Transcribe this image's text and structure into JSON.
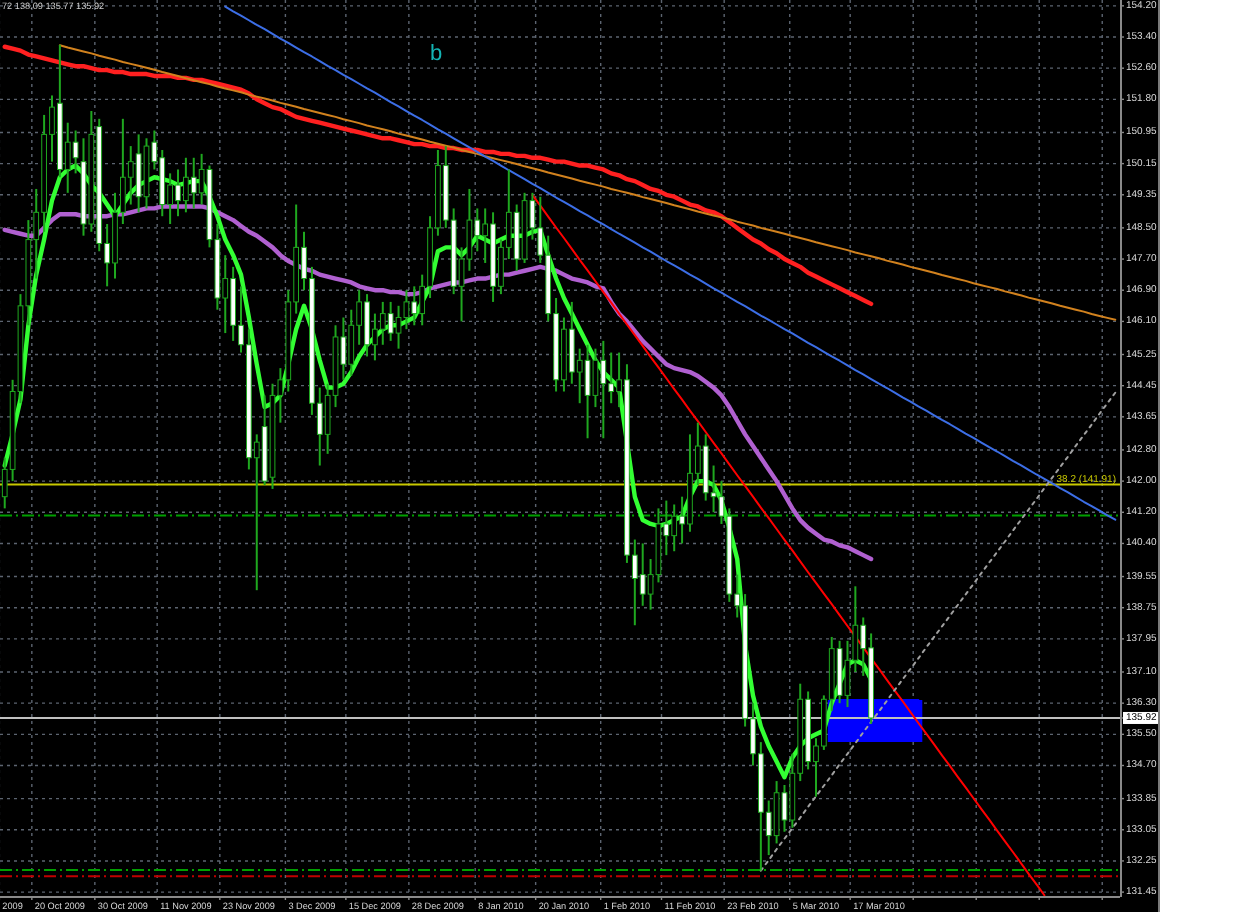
{
  "chart_data": {
    "type": "candlestick",
    "title": "72 138.09 135.77 135.92",
    "color": "#1fa81f",
    "ylim": [
      131.35,
      154.35
    ],
    "grid": true,
    "yticks": [
      {
        "value": 154.2,
        "label": "154.20"
      },
      {
        "value": 153.4,
        "label": "153.40"
      },
      {
        "value": 152.6,
        "label": "152.60"
      },
      {
        "value": 151.8,
        "label": "151.80"
      },
      {
        "value": 150.95,
        "label": "150.95"
      },
      {
        "value": 150.15,
        "label": "150.15"
      },
      {
        "value": 149.35,
        "label": "149.35"
      },
      {
        "value": 148.5,
        "label": "148.50"
      },
      {
        "value": 147.7,
        "label": "147.70"
      },
      {
        "value": 146.9,
        "label": "146.90"
      },
      {
        "value": 146.1,
        "label": "146.10"
      },
      {
        "value": 145.25,
        "label": "145.25"
      },
      {
        "value": 144.45,
        "label": "144.45"
      },
      {
        "value": 143.65,
        "label": "143.65"
      },
      {
        "value": 142.8,
        "label": "142.80"
      },
      {
        "value": 142,
        "label": "142.00"
      },
      {
        "value": 141.2,
        "label": "141.20"
      },
      {
        "value": 140.4,
        "label": "140.40"
      },
      {
        "value": 139.55,
        "label": "139.55"
      },
      {
        "value": 138.75,
        "label": "138.75"
      },
      {
        "value": 137.95,
        "label": "137.95"
      },
      {
        "value": 137.1,
        "label": "137.10"
      },
      {
        "value": 136.3,
        "label": "136.30"
      },
      {
        "value": 135.92,
        "label": "135.92"
      },
      {
        "value": 135.5,
        "label": "135.50"
      },
      {
        "value": 134.7,
        "label": "134.70"
      },
      {
        "value": 133.85,
        "label": "133.85"
      },
      {
        "value": 133.05,
        "label": "133.05"
      },
      {
        "value": 132.25,
        "label": "132.25"
      },
      {
        "value": 131.45,
        "label": "131.45"
      }
    ],
    "categories": [
      null,
      "2009",
      null,
      null,
      null,
      null,
      null,
      "20 Oct 2009",
      null,
      null,
      null,
      null,
      null,
      null,
      null,
      "30 Oct 2009",
      null,
      null,
      null,
      null,
      null,
      null,
      null,
      "11 Nov 2009",
      null,
      null,
      null,
      null,
      null,
      null,
      null,
      "23 Nov 2009",
      null,
      null,
      null,
      null,
      null,
      null,
      null,
      "3 Dec 2009",
      null,
      null,
      null,
      null,
      null,
      null,
      null,
      "15 Dec 2009",
      null,
      null,
      null,
      null,
      null,
      null,
      null,
      "28 Dec 2009",
      null,
      null,
      null,
      null,
      null,
      null,
      null,
      "8 Jan 2010",
      null,
      null,
      null,
      null,
      null,
      null,
      null,
      "20 Jan 2010",
      null,
      null,
      null,
      null,
      null,
      null,
      null,
      "1 Feb 2010",
      null,
      null,
      null,
      null,
      null,
      null,
      null,
      "11 Feb 2010",
      null,
      null,
      null,
      null,
      null,
      null,
      null,
      "23 Feb 2010",
      null,
      null,
      null,
      null,
      null,
      null,
      null,
      "5 Mar 2010",
      null,
      null,
      null,
      null,
      null,
      null,
      null,
      "17 Mar 2010",
      null,
      null,
      null,
      null,
      null,
      null,
      null,
      null,
      null,
      null,
      null,
      null,
      null,
      null,
      null,
      null,
      null,
      null,
      null,
      null,
      null,
      null,
      null,
      null,
      null,
      null,
      null,
      null,
      null,
      null
    ],
    "ohlc": [
      [
        141.6,
        142.6,
        141.3,
        142.3
      ],
      [
        142.3,
        144.6,
        142.0,
        144.3
      ],
      [
        144.3,
        146.8,
        144.0,
        146.5
      ],
      [
        146.5,
        148.7,
        146.0,
        148.2
      ],
      [
        148.2,
        149.5,
        147.2,
        148.9
      ],
      [
        148.9,
        151.4,
        148.4,
        150.9
      ],
      [
        150.9,
        151.9,
        150.2,
        151.6
      ],
      [
        151.7,
        153.2,
        149.8,
        150.0
      ],
      [
        150.0,
        151.2,
        149.4,
        150.7
      ],
      [
        150.7,
        151.0,
        149.9,
        150.3
      ],
      [
        150.2,
        150.8,
        148.3,
        148.6
      ],
      [
        148.6,
        151.5,
        148.4,
        150.9
      ],
      [
        151.1,
        151.3,
        147.9,
        148.1
      ],
      [
        148.1,
        148.6,
        147.0,
        147.6
      ],
      [
        147.6,
        149.4,
        147.2,
        148.9
      ],
      [
        148.9,
        151.3,
        148.6,
        149.8
      ],
      [
        149.8,
        150.6,
        149.1,
        150.2
      ],
      [
        150.4,
        150.9,
        148.9,
        149.3
      ],
      [
        149.3,
        150.8,
        149.0,
        150.6
      ],
      [
        150.7,
        151.0,
        150.0,
        150.2
      ],
      [
        150.3,
        150.5,
        148.8,
        149.1
      ],
      [
        149.1,
        149.9,
        148.6,
        149.6
      ],
      [
        149.6,
        150.0,
        148.8,
        149.2
      ],
      [
        149.2,
        150.3,
        148.9,
        149.8
      ],
      [
        149.8,
        150.3,
        149.0,
        149.4
      ],
      [
        149.4,
        150.4,
        149.1,
        150.0
      ],
      [
        150.0,
        150.1,
        148.0,
        148.2
      ],
      [
        148.2,
        148.6,
        146.4,
        146.7
      ],
      [
        146.7,
        147.8,
        145.8,
        147.2
      ],
      [
        147.2,
        147.5,
        145.6,
        146.0
      ],
      [
        146.0,
        147.0,
        145.3,
        145.5
      ],
      [
        145.5,
        145.9,
        142.3,
        142.6
      ],
      [
        142.6,
        143.2,
        139.2,
        143.0
      ],
      [
        143.4,
        144.2,
        141.9,
        142.0
      ],
      [
        142.1,
        144.5,
        141.8,
        144.2
      ],
      [
        144.2,
        144.9,
        143.5,
        144.6
      ],
      [
        144.6,
        146.9,
        144.3,
        146.6
      ],
      [
        146.6,
        149.1,
        146.3,
        148.0
      ],
      [
        148.0,
        148.4,
        146.9,
        147.2
      ],
      [
        147.2,
        147.5,
        143.7,
        144.0
      ],
      [
        144.0,
        144.4,
        142.4,
        143.2
      ],
      [
        143.2,
        144.5,
        142.7,
        144.2
      ],
      [
        144.2,
        146.0,
        143.9,
        145.7
      ],
      [
        145.7,
        146.2,
        144.6,
        145.0
      ],
      [
        145.0,
        146.4,
        144.7,
        146.0
      ],
      [
        146.0,
        146.9,
        145.5,
        146.6
      ],
      [
        146.6,
        146.8,
        145.2,
        145.5
      ],
      [
        145.5,
        146.3,
        145.1,
        145.9
      ],
      [
        145.9,
        146.6,
        145.5,
        146.3
      ],
      [
        146.3,
        146.6,
        145.6,
        145.8
      ],
      [
        145.8,
        146.5,
        145.4,
        146.2
      ],
      [
        146.2,
        146.9,
        145.9,
        146.6
      ],
      [
        146.6,
        147.0,
        146.0,
        146.3
      ],
      [
        146.3,
        147.3,
        146.0,
        147.0
      ],
      [
        147.0,
        148.8,
        146.7,
        148.5
      ],
      [
        148.5,
        150.5,
        148.3,
        150.1
      ],
      [
        150.1,
        150.6,
        148.5,
        148.7
      ],
      [
        148.7,
        149.0,
        146.8,
        147.0
      ],
      [
        147.0,
        148.0,
        146.1,
        147.7
      ],
      [
        147.7,
        149.5,
        147.4,
        148.7
      ],
      [
        148.7,
        149.0,
        147.9,
        148.3
      ],
      [
        148.3,
        149.0,
        147.6,
        148.6
      ],
      [
        148.6,
        148.9,
        146.6,
        147.0
      ],
      [
        147.0,
        148.2,
        146.8,
        148.0
      ],
      [
        148.0,
        150.0,
        147.7,
        148.9
      ],
      [
        148.9,
        149.1,
        147.4,
        147.7
      ],
      [
        147.7,
        149.4,
        147.6,
        149.2
      ],
      [
        149.2,
        149.4,
        148.2,
        148.5
      ],
      [
        148.5,
        149.3,
        147.6,
        147.8
      ],
      [
        147.8,
        148.3,
        146.1,
        146.3
      ],
      [
        146.3,
        146.7,
        144.3,
        144.6
      ],
      [
        144.6,
        146.2,
        144.3,
        145.9
      ],
      [
        145.9,
        146.6,
        144.5,
        144.8
      ],
      [
        144.8,
        145.4,
        144.0,
        145.1
      ],
      [
        145.1,
        145.5,
        143.1,
        144.2
      ],
      [
        144.2,
        145.4,
        143.9,
        145.1
      ],
      [
        145.1,
        145.6,
        143.1,
        144.5
      ],
      [
        144.5,
        145.3,
        144.0,
        144.3
      ],
      [
        144.3,
        145.3,
        143.9,
        144.6
      ],
      [
        144.6,
        145.0,
        139.9,
        140.1
      ],
      [
        140.1,
        140.5,
        138.3,
        139.5
      ],
      [
        139.6,
        140.4,
        138.8,
        139.1
      ],
      [
        139.1,
        140.0,
        138.7,
        139.6
      ],
      [
        139.6,
        141.3,
        139.4,
        140.9
      ],
      [
        140.9,
        141.5,
        140.1,
        140.6
      ],
      [
        140.6,
        141.4,
        140.2,
        141.1
      ],
      [
        141.1,
        141.6,
        140.4,
        140.9
      ],
      [
        140.9,
        143.2,
        140.7,
        142.2
      ],
      [
        142.2,
        143.5,
        141.9,
        142.9
      ],
      [
        142.9,
        143.2,
        141.5,
        141.7
      ],
      [
        141.7,
        142.4,
        141.2,
        141.6
      ],
      [
        141.6,
        142.0,
        140.9,
        141.1
      ],
      [
        141.1,
        141.3,
        138.9,
        139.1
      ],
      [
        139.1,
        139.6,
        138.5,
        138.8
      ],
      [
        138.8,
        139.1,
        135.7,
        135.9
      ],
      [
        135.9,
        136.3,
        134.7,
        135.0
      ],
      [
        135.0,
        135.3,
        132.0,
        133.5
      ],
      [
        133.5,
        133.8,
        132.4,
        132.9
      ],
      [
        132.9,
        134.3,
        132.7,
        134.0
      ],
      [
        134.0,
        134.2,
        133.0,
        133.3
      ],
      [
        133.3,
        135.0,
        133.1,
        134.5
      ],
      [
        134.5,
        136.8,
        134.3,
        136.4
      ],
      [
        136.4,
        136.6,
        134.6,
        134.8
      ],
      [
        134.8,
        135.4,
        133.9,
        135.2
      ],
      [
        135.2,
        136.5,
        135.1,
        136.4
      ],
      [
        136.4,
        138.0,
        136.1,
        137.7
      ],
      [
        137.7,
        137.9,
        136.3,
        136.5
      ],
      [
        136.5,
        137.9,
        136.2,
        137.4
      ],
      [
        137.4,
        139.3,
        137.1,
        138.3
      ],
      [
        138.3,
        138.5,
        137.0,
        137.7
      ],
      [
        137.72,
        138.09,
        135.77,
        135.92
      ],
      null,
      null,
      null,
      null,
      null,
      null,
      null,
      null,
      null,
      null,
      null,
      null,
      null,
      null,
      null,
      null,
      null,
      null,
      null,
      null,
      null,
      null,
      null,
      null,
      null,
      null,
      null,
      null,
      null,
      null,
      null
    ],
    "series": [
      {
        "type": "line",
        "color": "#0000ff",
        "values": [
          null,
          null,
          null,
          null,
          null,
          null,
          null,
          null,
          null,
          null,
          null,
          null,
          null,
          null,
          null,
          null,
          null,
          null,
          null,
          null,
          null,
          null,
          null,
          null,
          null,
          null,
          null,
          null,
          null,
          null,
          null,
          null,
          null,
          null,
          null,
          null,
          null,
          null,
          null,
          null,
          null,
          null,
          null,
          null,
          null,
          null,
          null,
          null,
          null,
          null,
          null,
          null,
          null,
          null,
          null,
          null,
          null,
          null,
          null,
          null,
          null,
          null,
          null,
          null,
          null,
          null,
          null,
          null,
          null,
          null,
          null,
          null,
          null,
          null,
          null,
          null,
          null,
          null,
          null,
          null,
          null,
          null,
          null,
          null,
          null,
          null,
          null,
          null,
          null,
          null,
          null,
          null,
          null,
          null,
          null,
          null,
          null,
          null,
          null,
          null,
          null,
          null,
          null,
          null,
          null,
          136.38,
          136.38,
          136.38,
          136.38,
          136.38,
          136.38,
          136.38,
          136.38,
          136.38,
          136.38,
          136.38,
          136.38,
          null,
          null,
          null,
          null,
          null,
          null,
          null,
          null,
          null,
          null,
          null,
          null,
          null,
          null,
          null,
          null,
          null,
          null,
          null,
          null,
          null,
          null,
          null,
          null,
          null
        ],
        "upper": [
          null,
          null,
          null,
          null,
          null,
          null,
          null,
          null,
          null,
          null,
          null,
          null,
          null,
          null,
          null,
          null,
          null,
          null,
          null,
          null,
          null,
          null,
          null,
          null,
          null,
          null,
          null,
          null,
          null,
          null,
          null,
          null,
          null,
          null,
          null,
          null,
          null,
          null,
          null,
          null,
          null,
          null,
          null,
          null,
          null,
          null,
          null,
          null,
          null,
          null,
          null,
          null,
          null,
          null,
          null,
          null,
          null,
          null,
          null,
          null,
          null,
          null,
          null,
          null,
          null,
          null,
          null,
          null,
          null,
          null,
          null,
          null,
          null,
          null,
          null,
          null,
          null,
          null,
          null,
          null,
          null,
          null,
          null,
          null,
          null,
          null,
          null,
          null,
          null,
          null,
          null,
          null,
          null,
          null,
          null,
          null,
          null,
          null,
          null,
          null,
          null,
          null,
          null,
          null,
          null,
          136.38,
          136.38,
          136.38,
          136.38,
          136.38,
          136.38,
          136.38,
          136.38,
          136.38,
          136.38,
          136.38,
          136.38,
          null,
          null,
          null,
          null,
          null,
          null,
          null,
          null,
          null,
          null,
          null,
          null,
          null,
          null,
          null,
          null,
          null,
          null,
          null,
          null,
          null,
          null,
          null,
          null,
          null
        ],
        "lower": [
          null,
          null,
          null,
          null,
          null,
          null,
          null,
          null,
          null,
          null,
          null,
          null,
          null,
          null,
          null,
          null,
          null,
          null,
          null,
          null,
          null,
          null,
          null,
          null,
          null,
          null,
          null,
          null,
          null,
          null,
          null,
          null,
          null,
          null,
          null,
          null,
          null,
          null,
          null,
          null,
          null,
          null,
          null,
          null,
          null,
          null,
          null,
          null,
          null,
          null,
          null,
          null,
          null,
          null,
          null,
          null,
          null,
          null,
          null,
          null,
          null,
          null,
          null,
          null,
          null,
          null,
          null,
          null,
          null,
          null,
          null,
          null,
          null,
          null,
          null,
          null,
          null,
          null,
          null,
          null,
          null,
          null,
          null,
          null,
          null,
          null,
          null,
          null,
          null,
          null,
          null,
          null,
          null,
          null,
          null,
          null,
          null,
          null,
          null,
          null,
          null,
          null,
          null,
          null,
          null,
          135.3,
          135.3,
          135.3,
          135.3,
          135.3,
          135.3,
          135.3,
          135.3,
          135.3,
          135.3,
          135.3,
          135.3,
          null,
          null,
          null,
          null,
          null,
          null,
          null,
          null,
          null,
          null,
          null,
          null,
          null,
          null,
          null,
          null,
          null,
          null,
          null,
          null,
          null,
          null,
          null,
          null,
          null
        ]
      },
      {
        "type": "line",
        "color": "#b060d0",
        "values": [
          148.45,
          148.4,
          148.35,
          148.3,
          148.3,
          148.5,
          148.7,
          148.85,
          148.85,
          148.85,
          148.8,
          148.8,
          148.8,
          148.8,
          148.85,
          148.85,
          148.9,
          148.95,
          149.0,
          149.0,
          149.05,
          149.05,
          149.05,
          149.05,
          149.05,
          149.05,
          149.0,
          148.9,
          148.8,
          148.7,
          148.55,
          148.4,
          148.3,
          148.15,
          148.0,
          147.8,
          147.65,
          147.55,
          147.45,
          147.4,
          147.3,
          147.25,
          147.2,
          147.15,
          147.1,
          147.0,
          146.95,
          146.9,
          146.9,
          146.85,
          146.85,
          146.8,
          146.8,
          146.85,
          146.95,
          147.0,
          147.05,
          147.1,
          147.1,
          147.15,
          147.2,
          147.2,
          147.25,
          147.3,
          147.3,
          147.35,
          147.4,
          147.45,
          147.5,
          147.45,
          147.4,
          147.3,
          147.2,
          147.15,
          147.1,
          147.0,
          146.95,
          146.6,
          146.3,
          146.1,
          145.85,
          145.6,
          145.4,
          145.2,
          145.0,
          144.9,
          144.85,
          144.8,
          144.7,
          144.55,
          144.4,
          144.2,
          143.9,
          143.55,
          143.2,
          142.9,
          142.6,
          142.3,
          142.0,
          141.65,
          141.3,
          141.0,
          140.8,
          140.65,
          140.5,
          140.45,
          140.35,
          140.3,
          140.2,
          140.1,
          140.0,
          null,
          null,
          null,
          null,
          null,
          null,
          null,
          null,
          null,
          null,
          null,
          null,
          null,
          null,
          null,
          null,
          null,
          null,
          null,
          null,
          null,
          null,
          null,
          null,
          null,
          null,
          null,
          null,
          null,
          null,
          null
        ]
      },
      {
        "type": "line",
        "color": "#ff2020",
        "values": [
          153.15,
          153.1,
          153.05,
          152.95,
          152.9,
          152.85,
          152.8,
          152.75,
          152.7,
          152.65,
          152.65,
          152.6,
          152.55,
          152.55,
          152.5,
          152.5,
          152.45,
          152.45,
          152.45,
          152.4,
          152.4,
          152.4,
          152.35,
          152.35,
          152.3,
          152.3,
          152.25,
          152.2,
          152.15,
          152.1,
          152.05,
          151.95,
          151.8,
          151.7,
          151.6,
          151.55,
          151.45,
          151.35,
          151.3,
          151.25,
          151.2,
          151.15,
          151.1,
          151.05,
          151.0,
          150.95,
          150.9,
          150.85,
          150.8,
          150.8,
          150.75,
          150.7,
          150.65,
          150.65,
          150.6,
          150.6,
          150.55,
          150.55,
          150.5,
          150.5,
          150.5,
          150.45,
          150.45,
          150.4,
          150.4,
          150.35,
          150.35,
          150.3,
          150.3,
          150.25,
          150.2,
          150.2,
          150.15,
          150.1,
          150.1,
          150.05,
          150.0,
          149.9,
          149.85,
          149.75,
          149.7,
          149.6,
          149.5,
          149.45,
          149.35,
          149.3,
          149.2,
          149.1,
          149.05,
          148.95,
          148.9,
          148.8,
          148.65,
          148.5,
          148.35,
          148.2,
          148.1,
          147.95,
          147.85,
          147.7,
          147.6,
          147.5,
          147.35,
          147.25,
          147.15,
          147.05,
          146.95,
          146.85,
          146.75,
          146.65,
          146.55,
          null,
          null,
          null,
          null,
          null,
          null,
          null,
          null,
          null,
          null,
          null,
          null,
          null,
          null,
          null,
          null,
          null,
          null,
          null,
          null,
          null,
          null,
          null,
          null,
          null,
          null,
          null,
          null,
          null,
          null,
          null
        ]
      },
      {
        "type": "line",
        "color": "#33ff33",
        "values": [
          142.4,
          143.2,
          144.1,
          146.0,
          147.3,
          148.2,
          149.2,
          149.8,
          150.0,
          150.1,
          149.9,
          149.6,
          149.4,
          149.1,
          148.8,
          149.1,
          149.4,
          149.6,
          149.7,
          149.8,
          149.75,
          149.7,
          149.6,
          149.65,
          149.7,
          149.7,
          149.3,
          148.8,
          148.2,
          147.8,
          147.3,
          146.2,
          145.0,
          143.9,
          144.0,
          144.2,
          145.0,
          145.9,
          146.5,
          145.9,
          145.1,
          144.4,
          144.4,
          144.5,
          144.8,
          145.2,
          145.5,
          145.7,
          145.9,
          146.0,
          146.0,
          146.1,
          146.2,
          146.6,
          147.0,
          147.9,
          148.0,
          148.0,
          147.8,
          148.0,
          148.3,
          148.2,
          148.1,
          148.2,
          148.3,
          148.3,
          148.3,
          148.4,
          148.45,
          147.8,
          147.2,
          146.7,
          146.3,
          145.9,
          145.5,
          145.1,
          144.8,
          144.6,
          144.4,
          143.0,
          141.6,
          141.0,
          140.9,
          140.85,
          140.9,
          141.0,
          141.1,
          141.6,
          142.0,
          142.0,
          141.9,
          141.5,
          140.8,
          140.0,
          137.8,
          136.5,
          135.7,
          135.2,
          134.8,
          134.4,
          134.9,
          135.2,
          135.4,
          135.5,
          135.6,
          136.3,
          136.8,
          137.3,
          137.4,
          137.3,
          136.9,
          null,
          null,
          null,
          null,
          null,
          null,
          null,
          null,
          null,
          null,
          null,
          null,
          null,
          null,
          null,
          null,
          null,
          null,
          null,
          null,
          null,
          null,
          null,
          null,
          null,
          null,
          null,
          null,
          null,
          null,
          null
        ]
      },
      {
        "type": "line",
        "color": "#d2821e",
        "values": [
          null,
          null,
          null,
          null,
          null,
          null,
          null,
          153.19,
          153.13,
          153.08,
          153.03,
          152.98,
          152.92,
          152.87,
          152.82,
          152.76,
          152.71,
          152.66,
          152.61,
          152.56,
          152.5,
          152.45,
          152.4,
          152.34,
          152.29,
          152.24,
          152.19,
          152.13,
          152.08,
          152.03,
          151.98,
          151.92,
          151.87,
          151.82,
          151.77,
          151.71,
          151.66,
          151.61,
          151.55,
          151.5,
          151.45,
          151.4,
          151.35,
          151.29,
          151.24,
          151.19,
          151.13,
          151.08,
          151.03,
          150.98,
          150.92,
          150.87,
          150.82,
          150.77,
          150.71,
          150.66,
          150.61,
          150.56,
          150.5,
          150.45,
          150.4,
          150.34,
          150.29,
          150.24,
          150.19,
          150.14,
          150.08,
          150.03,
          149.98,
          149.92,
          149.87,
          149.82,
          149.77,
          149.71,
          149.66,
          149.61,
          149.56,
          149.5,
          149.45,
          149.4,
          149.35,
          149.29,
          149.24,
          149.19,
          149.14,
          149.08,
          149.03,
          148.98,
          148.92,
          148.87,
          148.82,
          148.77,
          148.72,
          148.66,
          148.61,
          148.56,
          148.5,
          148.45,
          148.4,
          148.35,
          148.29,
          148.24,
          148.19,
          148.13,
          148.08,
          148.03,
          147.98,
          147.93,
          147.87,
          147.82,
          147.77,
          147.72,
          147.66,
          147.61,
          147.56,
          147.5,
          147.45,
          147.4,
          147.35,
          147.29,
          147.24,
          147.19,
          147.14,
          147.08,
          147.03,
          146.98,
          146.93,
          146.87,
          146.82,
          146.77,
          146.71,
          146.66,
          146.61,
          146.56,
          146.5,
          146.45,
          146.4,
          146.35,
          146.29,
          146.24,
          146.19,
          146.14
        ]
      },
      {
        "type": "line",
        "color": "#3c6ee6",
        "values": [
          null,
          null,
          null,
          null,
          null,
          null,
          null,
          null,
          null,
          null,
          null,
          null,
          null,
          null,
          null,
          null,
          null,
          null,
          null,
          null,
          null,
          null,
          null,
          null,
          null,
          null,
          null,
          null,
          154.18,
          154.06,
          153.95,
          153.83,
          153.71,
          153.6,
          153.48,
          153.36,
          153.25,
          153.13,
          153.01,
          152.9,
          152.78,
          152.66,
          152.55,
          152.43,
          152.32,
          152.2,
          152.08,
          151.97,
          151.85,
          151.73,
          151.62,
          151.5,
          151.38,
          151.27,
          151.15,
          151.03,
          150.92,
          150.8,
          150.68,
          150.57,
          150.45,
          150.33,
          150.22,
          150.1,
          149.98,
          149.87,
          149.75,
          149.63,
          149.52,
          149.4,
          149.28,
          149.17,
          149.05,
          148.93,
          148.82,
          148.7,
          148.59,
          148.47,
          148.35,
          148.24,
          148.12,
          148.0,
          147.89,
          147.77,
          147.65,
          147.54,
          147.42,
          147.3,
          147.19,
          147.07,
          146.95,
          146.84,
          146.72,
          146.6,
          146.49,
          146.37,
          146.25,
          146.14,
          146.02,
          145.9,
          145.79,
          145.67,
          145.55,
          145.44,
          145.32,
          145.2,
          145.09,
          144.97,
          144.85,
          144.74,
          144.62,
          144.5,
          144.39,
          144.27,
          144.15,
          144.04,
          143.92,
          143.81,
          143.69,
          143.57,
          143.46,
          143.34,
          143.22,
          143.11,
          142.99,
          142.87,
          142.76,
          142.64,
          142.52,
          142.41,
          142.29,
          142.17,
          142.06,
          141.94,
          141.82,
          141.71,
          141.59,
          141.47,
          141.36,
          141.24,
          141.12,
          141.01
        ]
      },
      {
        "type": "line",
        "color": "#ff0000",
        "values": [
          null,
          null,
          null,
          null,
          null,
          null,
          null,
          null,
          null,
          null,
          null,
          null,
          null,
          null,
          null,
          null,
          null,
          null,
          null,
          null,
          null,
          null,
          null,
          null,
          null,
          null,
          null,
          null,
          null,
          null,
          null,
          null,
          null,
          null,
          null,
          null,
          null,
          null,
          null,
          null,
          null,
          null,
          null,
          null,
          null,
          null,
          null,
          null,
          null,
          null,
          null,
          null,
          null,
          null,
          null,
          null,
          null,
          null,
          null,
          null,
          null,
          null,
          null,
          null,
          null,
          null,
          null,
          149.34,
          149.07,
          148.79,
          148.51,
          148.24,
          147.96,
          147.68,
          147.41,
          147.13,
          146.85,
          146.58,
          146.3,
          146.02,
          145.75,
          145.47,
          145.19,
          144.92,
          144.64,
          144.36,
          144.09,
          143.81,
          143.54,
          143.26,
          142.98,
          142.71,
          142.43,
          142.15,
          141.88,
          141.6,
          141.32,
          141.05,
          140.77,
          140.49,
          140.22,
          139.94,
          139.66,
          139.39,
          139.11,
          138.84,
          138.56,
          138.28,
          138.01,
          137.73,
          137.45,
          137.18,
          136.9,
          136.62,
          136.35,
          136.07,
          135.79,
          135.52,
          135.24,
          134.96,
          134.69,
          134.41,
          134.14,
          133.86,
          133.58,
          133.31,
          133.03,
          132.75,
          132.48,
          132.2,
          131.92,
          131.65,
          131.37,
          null,
          null,
          null,
          null,
          null,
          null,
          null,
          null,
          null
        ]
      },
      {
        "type": "line",
        "color": "#a0a0a0",
        "line_style": "dotted",
        "values": [
          null,
          null,
          null,
          null,
          null,
          null,
          null,
          null,
          null,
          null,
          null,
          null,
          null,
          null,
          null,
          null,
          null,
          null,
          null,
          null,
          null,
          null,
          null,
          null,
          null,
          null,
          null,
          null,
          null,
          null,
          null,
          null,
          null,
          null,
          null,
          null,
          null,
          null,
          null,
          null,
          null,
          null,
          null,
          null,
          null,
          null,
          null,
          null,
          null,
          null,
          null,
          null,
          null,
          null,
          null,
          null,
          null,
          null,
          null,
          null,
          null,
          null,
          null,
          null,
          null,
          null,
          null,
          null,
          null,
          null,
          null,
          null,
          null,
          null,
          null,
          null,
          null,
          null,
          null,
          null,
          null,
          null,
          null,
          null,
          null,
          null,
          null,
          null,
          null,
          null,
          null,
          null,
          null,
          null,
          null,
          null,
          132.0,
          132.27,
          132.55,
          132.82,
          133.09,
          133.36,
          133.64,
          133.91,
          134.18,
          134.45,
          134.73,
          135.0,
          135.27,
          135.55,
          135.82,
          136.09,
          136.36,
          136.64,
          136.91,
          137.18,
          137.45,
          137.73,
          138.0,
          138.27,
          138.54,
          138.82,
          139.09,
          139.36,
          139.64,
          139.91,
          140.18,
          140.45,
          140.73,
          141.0,
          141.27,
          141.54,
          141.82,
          142.09,
          142.36,
          142.63,
          142.91,
          143.18,
          143.45,
          143.73,
          144.0,
          144.27
        ]
      }
    ],
    "ref_lines": [
      {
        "axis": "y",
        "value": 141.91,
        "label": "38.2 (141.91)",
        "color": "#c8c800"
      },
      {
        "axis": "y",
        "value": 141.12,
        "color": "#00a000",
        "line_style": "dashed"
      },
      {
        "axis": "y",
        "value": 132.02,
        "color": "#00a000",
        "line_style": "dashed"
      },
      {
        "axis": "y",
        "value": 131.86,
        "color": "#c00000",
        "line_style": "dashed"
      },
      {
        "axis": "y",
        "value": 135.92,
        "color": "#c0c0c0"
      }
    ],
    "annotations": [
      "b"
    ]
  }
}
